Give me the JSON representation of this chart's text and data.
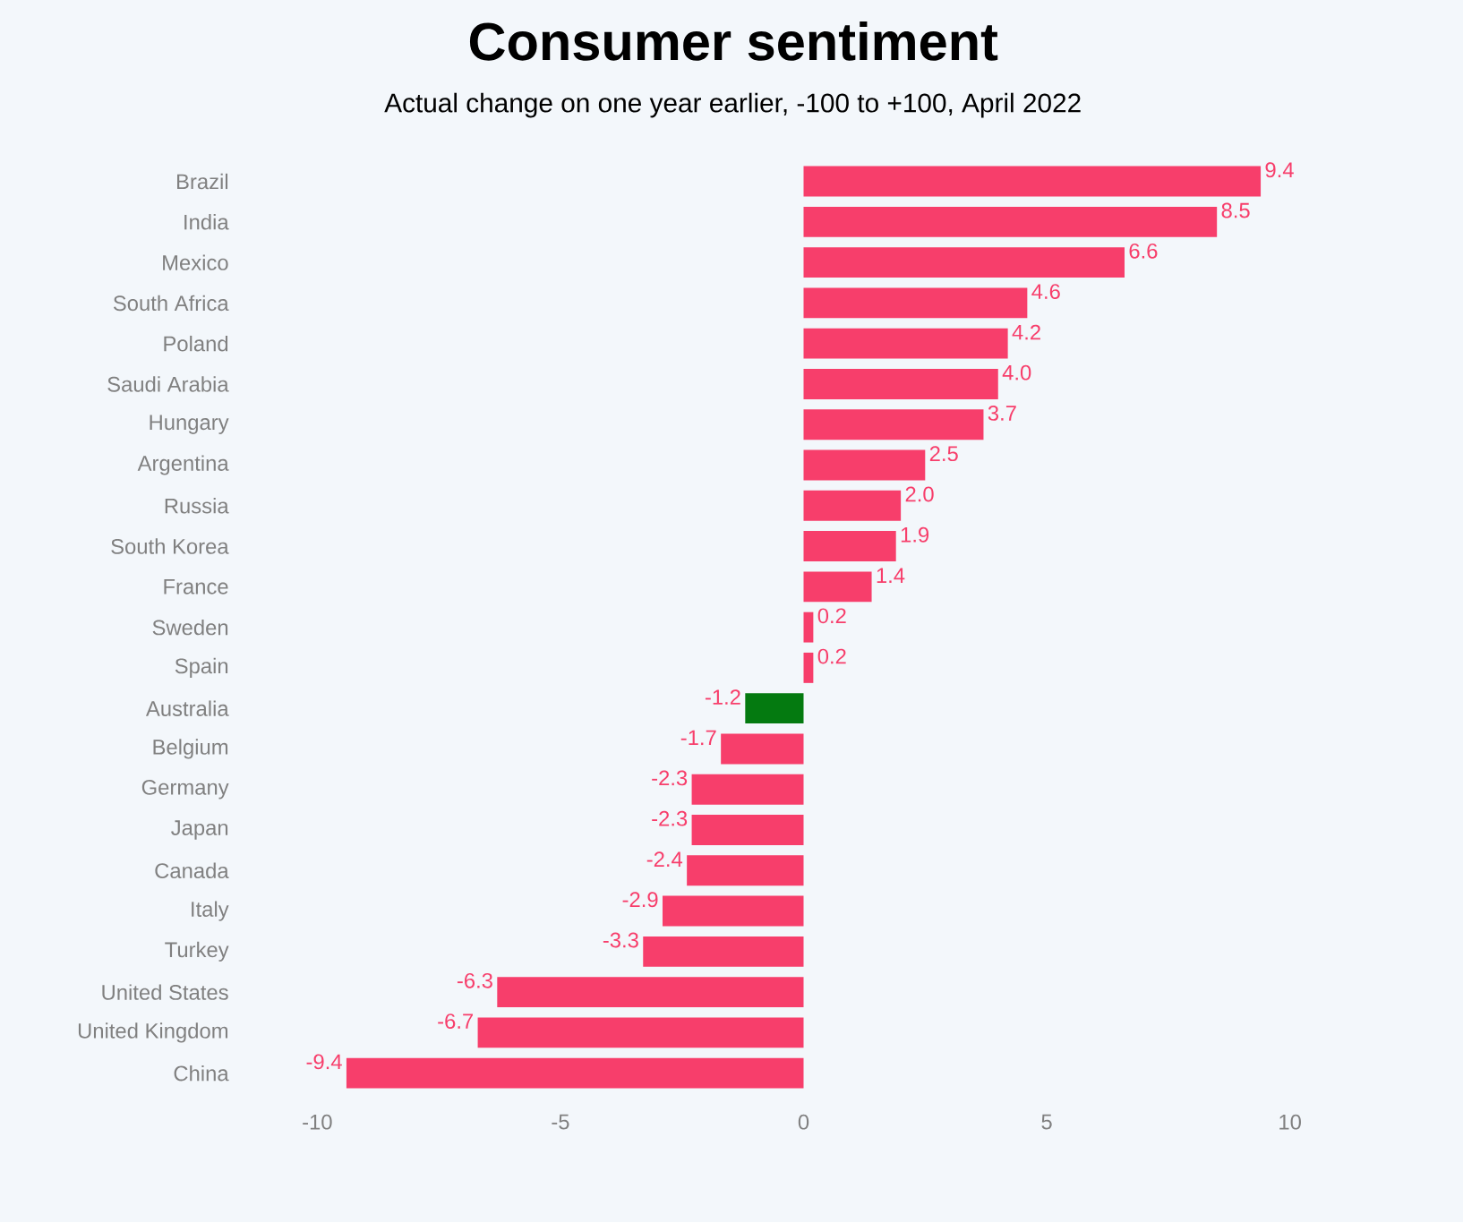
{
  "chart_data": {
    "type": "bar",
    "orientation": "horizontal",
    "title": "Consumer sentiment",
    "subtitle": "Actual change on one year earlier, -100 to +100, April 2022",
    "categories": [
      "Brazil",
      "India",
      "Mexico",
      "South Africa",
      "Poland",
      "Saudi Arabia",
      "Hungary",
      "Argentina",
      "Russia",
      "South Korea",
      "France",
      "Sweden",
      "Spain",
      "Australia",
      "Belgium",
      "Germany",
      "Japan",
      "Canada",
      "Italy",
      "Turkey",
      "United States",
      "United Kingdom",
      "China"
    ],
    "values": [
      9.4,
      8.5,
      6.6,
      4.6,
      4.2,
      4.0,
      3.7,
      2.5,
      2.0,
      1.9,
      1.4,
      0.2,
      0.2,
      -1.2,
      -1.7,
      -2.3,
      -2.3,
      -2.4,
      -2.9,
      -3.3,
      -6.3,
      -6.7,
      -9.4
    ],
    "value_labels": [
      "9.4",
      "8.5",
      "6.6",
      "4.6",
      "4.2",
      "4.0",
      "3.7",
      "2.5",
      "2.0",
      "1.9",
      "1.4",
      "0.2",
      "0.2",
      "-1.2",
      "-1.7",
      "-2.3",
      "-2.3",
      "-2.4",
      "-2.9",
      "-3.3",
      "-6.3",
      "-6.7",
      "-9.4"
    ],
    "colors": [
      "#f73e6b",
      "#f73e6b",
      "#f73e6b",
      "#f73e6b",
      "#f73e6b",
      "#f73e6b",
      "#f73e6b",
      "#f73e6b",
      "#f73e6b",
      "#f73e6b",
      "#f73e6b",
      "#f73e6b",
      "#f73e6b",
      "#047a10",
      "#f73e6b",
      "#f73e6b",
      "#f73e6b",
      "#f73e6b",
      "#f73e6b",
      "#f73e6b",
      "#f73e6b",
      "#f73e6b",
      "#f73e6b"
    ],
    "xlim": [
      -10,
      10
    ],
    "xticks": [
      -10,
      -5,
      0,
      5,
      10
    ]
  }
}
